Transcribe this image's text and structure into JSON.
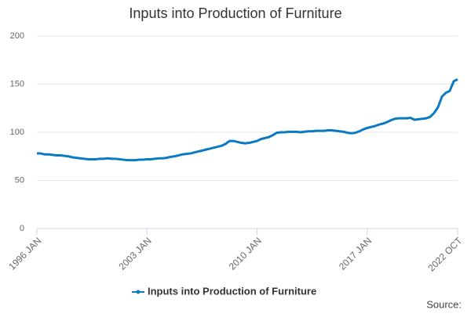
{
  "chart_data": {
    "type": "line",
    "title": "Inputs into Production of Furniture",
    "source": "Source:",
    "categories": [
      "1996 JAN",
      null,
      null,
      null,
      null,
      null,
      null,
      null,
      null,
      null,
      null,
      null,
      null,
      null,
      null,
      null,
      null,
      null,
      null,
      null,
      null,
      null,
      null,
      null,
      null,
      null,
      null,
      null,
      "2003 JAN",
      null,
      null,
      null,
      null,
      null,
      null,
      null,
      null,
      null,
      null,
      null,
      null,
      null,
      null,
      null,
      null,
      null,
      null,
      null,
      null,
      null,
      null,
      null,
      null,
      null,
      null,
      null,
      "2010 JAN",
      null,
      null,
      null,
      null,
      null,
      null,
      null,
      null,
      null,
      null,
      null,
      null,
      null,
      null,
      null,
      null,
      null,
      null,
      null,
      null,
      null,
      null,
      null,
      null,
      null,
      null,
      null,
      "2017 JAN",
      null,
      null,
      null,
      null,
      null,
      null,
      null,
      null,
      null,
      null,
      null,
      null,
      null,
      null,
      null,
      null,
      null,
      null,
      null,
      null,
      null,
      null,
      "2022 OCT"
    ],
    "series": [
      {
        "name": "Inputs into Production of Furniture",
        "color": "#0a7bc1",
        "values": [
          78,
          78,
          77,
          77,
          76.5,
          76,
          76,
          75.5,
          75,
          74,
          73.5,
          73,
          72.5,
          72,
          72,
          72,
          72.5,
          72.5,
          73,
          72.5,
          72.5,
          72,
          71.5,
          71,
          71,
          71,
          71.5,
          71.5,
          72,
          72,
          72.5,
          73,
          73,
          73.5,
          74.5,
          75,
          76,
          77,
          77.5,
          78,
          79,
          80,
          81,
          82,
          83,
          84,
          85,
          86,
          88,
          91,
          91,
          90,
          89,
          88.5,
          89,
          90,
          91,
          93,
          94,
          95,
          97,
          99.5,
          100,
          100,
          100.5,
          100.5,
          100.5,
          100,
          100.5,
          101,
          101,
          101.5,
          101.5,
          101.5,
          102,
          102,
          101.5,
          101,
          100.5,
          99.5,
          99,
          99.5,
          101,
          103,
          104.5,
          105.5,
          106.5,
          108,
          109,
          110.5,
          112.5,
          114,
          114.5,
          114.5,
          114.5,
          115,
          113,
          113.5,
          114,
          114.5,
          116,
          120,
          126,
          137,
          141,
          143,
          153,
          155
        ]
      }
    ],
    "ylim": [
      0,
      200
    ],
    "yticks": [
      0,
      50,
      100,
      150,
      200
    ],
    "grid": true,
    "legend": "bottom"
  }
}
